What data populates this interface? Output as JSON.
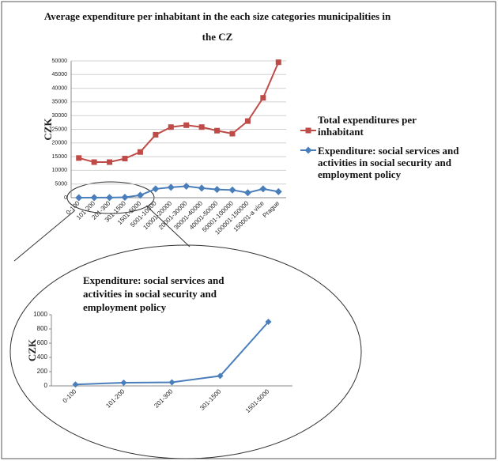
{
  "chart_data": [
    {
      "type": "line",
      "title": "Average expenditure per inhabitant in the each size categories municipalities in the CZ",
      "y_label": "CZK",
      "categories": [
        "0-100",
        "101-200",
        "201-300",
        "301-1500",
        "1501-5000",
        "5001-10000",
        "10001-20000",
        "20001-30000",
        "30001-40000",
        "40001-50000",
        "50001-100000",
        "100001-150000",
        "150001-a více",
        "Prague"
      ],
      "series": [
        {
          "name": "Total expenditures per inhabitant",
          "color": "#be4b48",
          "marker": "square",
          "values": [
            14500,
            13000,
            13000,
            14300,
            16700,
            23000,
            25800,
            26500,
            25800,
            24500,
            23400,
            28000,
            36500,
            49500
          ]
        },
        {
          "name": "Expenditure: social services and activities in social security and employment policy",
          "color": "#4a7ebb",
          "marker": "diamond",
          "values": [
            0,
            50,
            50,
            150,
            900,
            3200,
            3800,
            4200,
            3500,
            3000,
            2800,
            1800,
            3200,
            2200
          ]
        }
      ],
      "ylim": [
        0,
        50000
      ],
      "yticks": [
        0,
        5000,
        10000,
        15000,
        20000,
        25000,
        30000,
        35000,
        40000,
        45000,
        50000
      ],
      "grid": true,
      "legend": "right"
    },
    {
      "type": "line",
      "title": "Expenditure: social services and activities in social security and employment policy",
      "y_label": "CZK",
      "categories": [
        "0-100",
        "101-200",
        "201-300",
        "301-1500",
        "1501-5000"
      ],
      "series": [
        {
          "color": "#4a7ebb",
          "marker": "diamond",
          "values": [
            20,
            45,
            50,
            140,
            900
          ]
        }
      ],
      "ylim": [
        0,
        1000
      ],
      "yticks": [
        0,
        200,
        400,
        600,
        800,
        1000
      ],
      "grid": false,
      "legend": "none"
    }
  ]
}
